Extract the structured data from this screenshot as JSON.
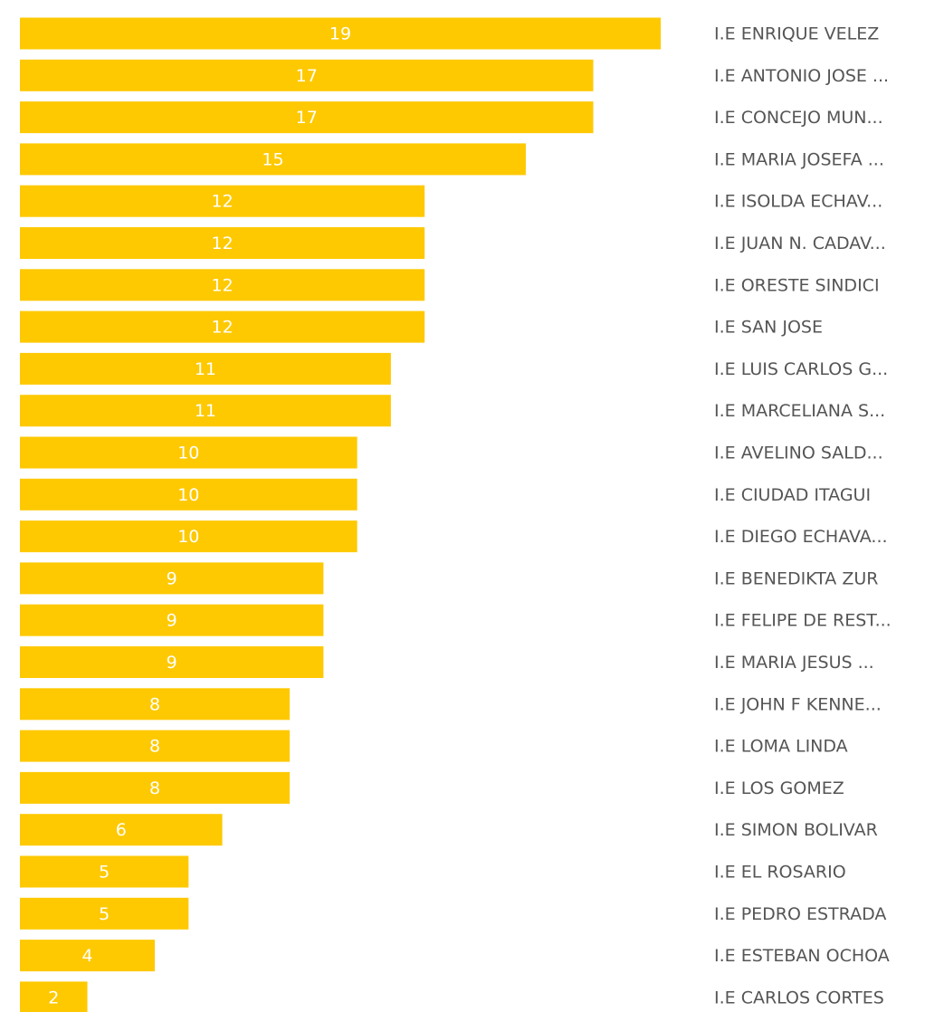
{
  "chart_data": {
    "type": "bar",
    "orientation": "horizontal",
    "color": "#fec901",
    "categories": [
      "I.E ENRIQUE VELEZ",
      "I.E ANTONIO JOSE ...",
      "I.E CONCEJO MUN...",
      "I.E MARIA JOSEFA ...",
      "I.E ISOLDA ECHAV...",
      "I.E JUAN N. CADAV...",
      "I.E ORESTE SINDICI",
      "I.E SAN JOSE",
      "I.E LUIS CARLOS G...",
      "I.E MARCELIANA S...",
      "I.E AVELINO SALD...",
      "I.E CIUDAD ITAGUI",
      "I.E DIEGO ECHAVA...",
      "I.E BENEDIKTA ZUR",
      "I.E FELIPE DE REST...",
      "I.E MARIA JESUS ...",
      "I.E JOHN F KENNE...",
      "I.E LOMA LINDA",
      "I.E LOS GOMEZ",
      "I.E SIMON BOLIVAR",
      "I.E EL ROSARIO",
      "I.E PEDRO ESTRADA",
      "I.E ESTEBAN OCHOA",
      "I.E CARLOS CORTES"
    ],
    "values": [
      19,
      17,
      17,
      15,
      12,
      12,
      12,
      12,
      11,
      11,
      10,
      10,
      10,
      9,
      9,
      9,
      8,
      8,
      8,
      6,
      5,
      5,
      4,
      2
    ]
  }
}
